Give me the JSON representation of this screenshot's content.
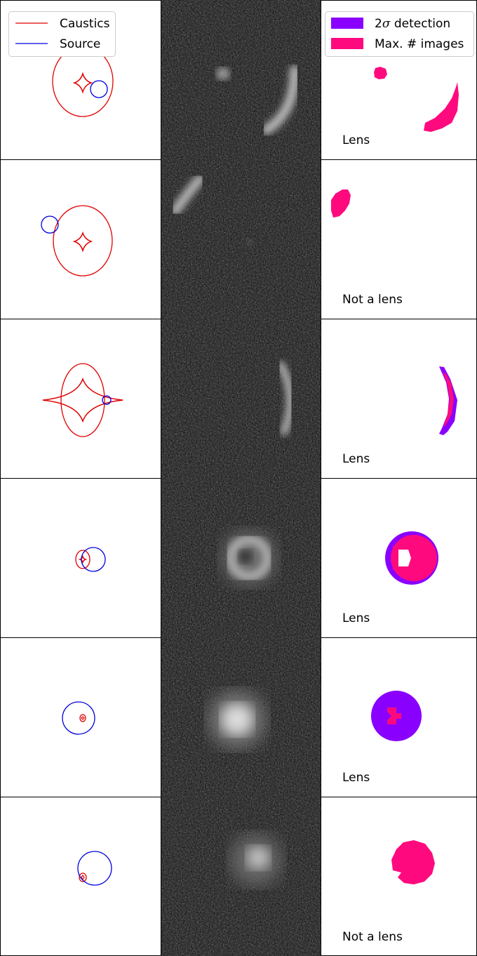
{
  "figure": {
    "legend_left": {
      "items": [
        {
          "label": "Caustics",
          "color": "#e00000"
        },
        {
          "label": "Source",
          "color": "#0000dd"
        }
      ]
    },
    "legend_right": {
      "items": [
        {
          "label_prefix": "2",
          "label_math": "σ",
          "label_suffix": " detection",
          "color": "#8a00ff"
        },
        {
          "label_prefix": "Max. ",
          "label_math": "#",
          "label_suffix": " images",
          "color": "#ff0a7e"
        }
      ]
    },
    "colors": {
      "caustic": "#e00000",
      "source": "#0000dd",
      "detection": "#8a00ff",
      "max_images": "#ff0a7e",
      "panel_border": "#000000"
    },
    "rows": [
      {
        "label": "Lens"
      },
      {
        "label": "Not a lens"
      },
      {
        "label": "Lens"
      },
      {
        "label": "Lens"
      },
      {
        "label": "Lens"
      },
      {
        "label": "Not a lens"
      }
    ]
  }
}
